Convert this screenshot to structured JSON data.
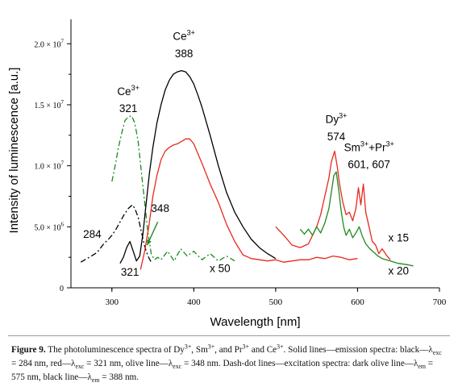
{
  "chart_data": {
    "type": "line",
    "xlabel": "Wavelength [nm]",
    "ylabel": "Intensity of luminescence [a.u.]",
    "xlim": [
      250,
      700
    ],
    "ylim": [
      0,
      22000000.0
    ],
    "x_ticks": [
      300,
      400,
      500,
      600,
      700
    ],
    "x_tick_labels": [
      "300",
      "400",
      "500",
      "600",
      "700"
    ],
    "y_ticks": [
      0,
      5000000,
      10000000,
      15000000,
      20000000
    ],
    "y_tick_labels": [
      {
        "mant": "0",
        "exp": ""
      },
      {
        "mant": "5.0 × 10",
        "exp": "6"
      },
      {
        "mant": "1.0 × 10",
        "exp": "7"
      },
      {
        "mant": "1.5 × 10",
        "exp": "7"
      },
      {
        "mant": "2.0 × 10",
        "exp": "7"
      }
    ],
    "grid": false,
    "series": [
      {
        "style": "dashdot",
        "color": "#000000",
        "x": [
          262,
          275,
          282,
          290,
          296,
          300,
          305,
          310,
          315,
          320,
          325,
          328,
          332,
          336,
          340,
          344,
          348
        ],
        "y": [
          2100000.0,
          2600000.0,
          2900000.0,
          3600000.0,
          4000000.0,
          4300000.0,
          4800000.0,
          5400000.0,
          6000000.0,
          6500000.0,
          6800000.0,
          6500000.0,
          5800000.0,
          4600000.0,
          3400000.0,
          2600000.0,
          2100000.0
        ]
      },
      {
        "style": "dashdot",
        "color": "#1e8a1e",
        "x": [
          300,
          304,
          308,
          312,
          316,
          320,
          324,
          328,
          332,
          336,
          340,
          344,
          348,
          352,
          356,
          360,
          368,
          376,
          384,
          392,
          400,
          410,
          420,
          430,
          440,
          450
        ],
        "y": [
          8700000.0,
          10000000.0,
          11500000.0,
          12700000.0,
          13700000.0,
          14000000.0,
          14100000.0,
          13500000.0,
          12000000.0,
          9500000.0,
          7000000.0,
          4500000.0,
          2800000.0,
          2300000.0,
          2500000.0,
          2300000.0,
          3000000.0,
          2200000.0,
          3200000.0,
          2600000.0,
          3000000.0,
          2300000.0,
          2800000.0,
          2200000.0,
          2600000.0,
          2200000.0
        ]
      },
      {
        "style": "solid",
        "color": "#000000",
        "x": [
          310,
          314,
          318,
          322,
          326,
          330,
          334,
          338,
          342,
          346,
          350,
          355,
          360,
          365,
          370,
          375,
          380,
          385,
          390,
          395,
          400,
          405,
          410,
          420,
          430,
          440,
          450,
          460,
          470,
          480,
          490,
          500
        ],
        "y": [
          2000000.0,
          2500000.0,
          3300000.0,
          3800000.0,
          3000000.0,
          2200000.0,
          2600000.0,
          4500000.0,
          7000000.0,
          9500000.0,
          11500000.0,
          13500000.0,
          15000000.0,
          16200000.0,
          17000000.0,
          17500000.0,
          17700000.0,
          17800000.0,
          17700000.0,
          17300000.0,
          16700000.0,
          15800000.0,
          14800000.0,
          12500000.0,
          10000000.0,
          7800000.0,
          6200000.0,
          5000000.0,
          4000000.0,
          3300000.0,
          2800000.0,
          2400000.0
        ]
      },
      {
        "style": "solid",
        "color": "#e8281e",
        "x": [
          335,
          340,
          345,
          350,
          355,
          360,
          365,
          370,
          375,
          380,
          385,
          390,
          395,
          400,
          405,
          410,
          420,
          430,
          440,
          450,
          460,
          470,
          480,
          490,
          500,
          510,
          520,
          530,
          540,
          550,
          560,
          570,
          580,
          590,
          600
        ],
        "y": [
          1500000.0,
          3000000.0,
          5000000.0,
          7500000.0,
          9200000.0,
          10500000.0,
          11200000.0,
          11500000.0,
          11700000.0,
          11800000.0,
          12000000.0,
          12200000.0,
          12200000.0,
          11800000.0,
          11000000.0,
          10200000.0,
          8500000.0,
          7000000.0,
          5200000.0,
          3800000.0,
          2700000.0,
          2400000.0,
          2300000.0,
          2200000.0,
          2300000.0,
          2100000.0,
          2200000.0,
          2300000.0,
          2300000.0,
          2500000.0,
          2400000.0,
          2600000.0,
          2500000.0,
          2300000.0,
          2400000.0
        ]
      },
      {
        "style": "solid",
        "color": "#e8281e",
        "x": [
          500,
          510,
          520,
          530,
          540,
          550,
          555,
          560,
          565,
          568,
          572,
          575,
          578,
          582,
          586,
          590,
          594,
          598,
          601,
          604,
          607,
          610,
          614,
          618,
          622,
          626,
          630,
          636,
          640
        ],
        "y": [
          5000000.0,
          4300000.0,
          3500000.0,
          3300000.0,
          3600000.0,
          5000000.0,
          6000000.0,
          7500000.0,
          9000000.0,
          10300000.0,
          11200000.0,
          10000000.0,
          8500000.0,
          7000000.0,
          6000000.0,
          6200000.0,
          5500000.0,
          6500000.0,
          8200000.0,
          6800000.0,
          8500000.0,
          6200000.0,
          5000000.0,
          3800000.0,
          3500000.0,
          2800000.0,
          3200000.0,
          2600000.0,
          2300000.0
        ]
      },
      {
        "style": "solid",
        "color": "#1e8a1e",
        "x": [
          530,
          535,
          540,
          545,
          550,
          555,
          560,
          565,
          568,
          571,
          574,
          577,
          580,
          583,
          586,
          590,
          594,
          598,
          602,
          606,
          610,
          615,
          620,
          625,
          630,
          635,
          640,
          645,
          650,
          660,
          668
        ],
        "y": [
          4800000.0,
          4400000.0,
          4800000.0,
          4300000.0,
          5000000.0,
          4500000.0,
          5300000.0,
          6500000.0,
          7800000.0,
          9200000.0,
          9500000.0,
          8000000.0,
          6300000.0,
          5000000.0,
          4300000.0,
          4800000.0,
          4100000.0,
          4500000.0,
          5000000.0,
          4200000.0,
          3600000.0,
          3200000.0,
          2900000.0,
          2600000.0,
          2400000.0,
          2300000.0,
          2200000.0,
          2100000.0,
          2000000.0,
          1900000.0,
          1800000.0
        ]
      }
    ],
    "annotations": [
      {
        "text": "Ce",
        "sup": "3+",
        "x": 320,
        "y": 15800000.0
      },
      {
        "text": "321",
        "x": 320,
        "y": 14400000.0
      },
      {
        "text": "Ce",
        "sup": "3+",
        "x": 388,
        "y": 20300000.0
      },
      {
        "text": "388",
        "x": 388,
        "y": 18900000.0
      },
      {
        "text": "Dy",
        "sup": "3+",
        "x": 574,
        "y": 13500000.0
      },
      {
        "text": "574",
        "x": 574,
        "y": 12100000.0
      },
      {
        "text": "Sm",
        "sup": "3+",
        "tail": "+Pr",
        "sup2": "3+",
        "x": 614,
        "y": 11200000.0
      },
      {
        "text": "601, 607",
        "x": 614,
        "y": 9800000.0
      },
      {
        "text": "284",
        "x": 276,
        "y": 4100000.0
      },
      {
        "text": "321",
        "x": 322,
        "y": 1000000.0
      },
      {
        "text": "348",
        "x": 359,
        "y": 6200000.0
      },
      {
        "text": "x 15",
        "x": 650,
        "y": 3800000.0
      },
      {
        "text": "x 50",
        "x": 432,
        "y": 1300000.0
      },
      {
        "text": "x 20",
        "x": 650,
        "y": 1100000.0
      }
    ],
    "arrow": {
      "from": [
        356,
        5400000.0
      ],
      "to": [
        343,
        3500000.0
      ],
      "color": "#1e8a1e"
    }
  },
  "caption": {
    "label": "Figure 9.",
    "p1": " The photoluminescence spectra of Dy",
    "p1s": "3+",
    "p2": ", Sm",
    "p2s": "3+",
    "p3": ", and Pr",
    "p3s": "3+",
    "p4": " and Ce",
    "p4s": "3+",
    "p5": ". Solid lines—emission spectra: black—λ",
    "p5b": "exc",
    "p6": " = 284 nm, red—λ",
    "p6b": "exc",
    "p7": " = 321 nm, olive line—λ",
    "p7b": "exc",
    "p8": " = 348 nm. Dash-dot lines—excitation spectra: dark olive line—λ",
    "p8b": "em",
    "p9": " = 575 nm, black line—λ",
    "p9b": "em",
    "p10": " = 388 nm."
  }
}
